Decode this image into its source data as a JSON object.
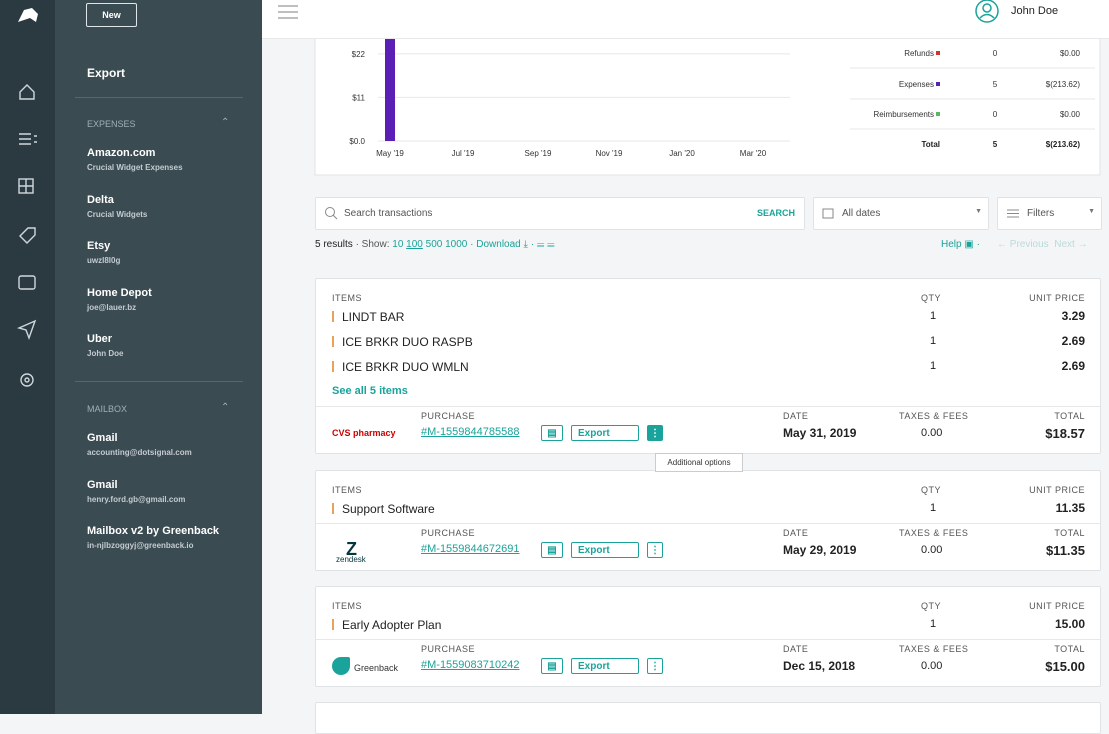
{
  "topbar": {
    "user": "John Doe"
  },
  "sidebar": {
    "new_button": "New",
    "export": "Export",
    "sections": [
      {
        "title": "EXPENSES",
        "items": [
          {
            "name": "Amazon.com",
            "sub": "Crucial Widget Expenses"
          },
          {
            "name": "Delta",
            "sub": "Crucial Widgets"
          },
          {
            "name": "Etsy",
            "sub": "uwzl8l0g"
          },
          {
            "name": "Home Depot",
            "sub": "joe@lauer.bz"
          },
          {
            "name": "Uber",
            "sub": "John Doe"
          }
        ]
      },
      {
        "title": "MAILBOX",
        "items": [
          {
            "name": "Gmail",
            "sub": "accounting@dotsignal.com"
          },
          {
            "name": "Gmail",
            "sub": "henry.ford.gb@gmail.com"
          },
          {
            "name": "Mailbox v2 by Greenback",
            "sub": "in-njlbzoggyj@greenback.io"
          }
        ]
      }
    ]
  },
  "chart": {
    "type": "bar",
    "categories": [
      "May '19",
      "Jul '19",
      "Sep '19",
      "Nov '19",
      "Jan '20",
      "Mar '20"
    ],
    "values": [
      26,
      0,
      0,
      0,
      0,
      0
    ],
    "color": "#5b1fb5",
    "ylim": [
      0,
      26
    ],
    "yticks": [
      {
        "value": 0,
        "label": "$0.0"
      },
      {
        "value": 11,
        "label": "$11"
      },
      {
        "value": 22,
        "label": "$22"
      }
    ],
    "grid": true
  },
  "summary": {
    "rows": [
      {
        "label": "Refunds",
        "count": 0,
        "amount": "$0.00",
        "color": "#d0342c"
      },
      {
        "label": "Expenses",
        "count": 5,
        "amount": "$(213.62)",
        "color": "#5b1fb5"
      },
      {
        "label": "Reimbursements",
        "count": 0,
        "amount": "$0.00",
        "color": "#5cb85c"
      }
    ],
    "total": {
      "label": "Total",
      "count": 5,
      "amount": "$(213.62)"
    }
  },
  "toolbar": {
    "search_placeholder": "Search transactions",
    "search_button": "SEARCH",
    "dates": "All dates",
    "filters": "Filters"
  },
  "results": {
    "count": "5 results",
    "show": "· Show:",
    "sizes": [
      10,
      100,
      500,
      1000
    ],
    "download": "· Download",
    "help": "Help",
    "previous": "← Previous",
    "next": "Next →"
  },
  "labels": {
    "items": "ITEMS",
    "qty": "QTY",
    "unit_price": "UNIT PRICE",
    "purchase": "PURCHASE",
    "export": "Export",
    "date": "DATE",
    "taxes": "TAXES & FEES",
    "total": "TOTAL"
  },
  "transactions": [
    {
      "items": [
        {
          "name": "LINDT BAR",
          "qty": 1,
          "price": "3.29"
        },
        {
          "name": "ICE BRKR DUO RASPB",
          "qty": 1,
          "price": "2.69"
        },
        {
          "name": "ICE BRKR DUO WMLN",
          "qty": 1,
          "price": "2.69"
        }
      ],
      "see_all": "See all 5 items",
      "merchant": "CVS pharmacy",
      "purchase": "#M-1559844785588",
      "date": "May 31, 2019",
      "taxes": "0.00",
      "total": "$18.57"
    },
    {
      "items": [
        {
          "name": "Support Software",
          "qty": 1,
          "price": "11.35"
        }
      ],
      "merchant": "zendesk",
      "purchase": "#M-1559844672691",
      "date": "May 29, 2019",
      "taxes": "0.00",
      "total": "$11.35"
    },
    {
      "items": [
        {
          "name": "Early Adopter Plan",
          "qty": 1,
          "price": "15.00"
        }
      ],
      "merchant": "Greenback",
      "purchase": "#M-1559083710242",
      "date": "Dec 15, 2018",
      "taxes": "0.00",
      "total": "$15.00"
    }
  ],
  "tooltip": "Additional options"
}
